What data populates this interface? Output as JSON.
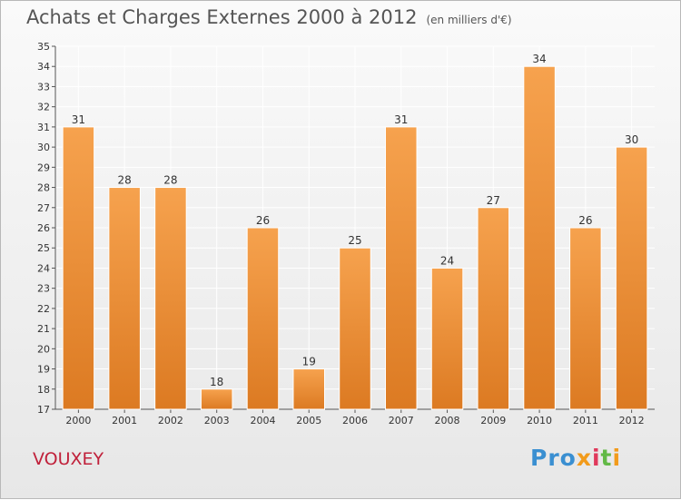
{
  "header": {
    "title": "Achats et Charges Externes 2000 à 2012",
    "subtitle": "(en milliers d'€)"
  },
  "footer": {
    "commune": "VOUXEY",
    "logo_parts": [
      "Pro",
      "x",
      "i",
      "t",
      "i"
    ]
  },
  "colors": {
    "bar_light": "#f6a24e",
    "bar_dark": "#dc7a22",
    "grid": "#ffffff",
    "commune": "#c0203a"
  },
  "chart_data": {
    "type": "bar",
    "categories": [
      "2000",
      "2001",
      "2002",
      "2003",
      "2004",
      "2005",
      "2006",
      "2007",
      "2008",
      "2009",
      "2010",
      "2011",
      "2012"
    ],
    "values": [
      31,
      28,
      28,
      18,
      26,
      19,
      25,
      31,
      24,
      27,
      34,
      26,
      30
    ],
    "ylim": [
      17,
      35
    ],
    "yticks": [
      17,
      18,
      19,
      20,
      21,
      22,
      23,
      24,
      25,
      26,
      27,
      28,
      29,
      30,
      31,
      32,
      33,
      34,
      35
    ],
    "grid": true,
    "data_labels": true
  }
}
